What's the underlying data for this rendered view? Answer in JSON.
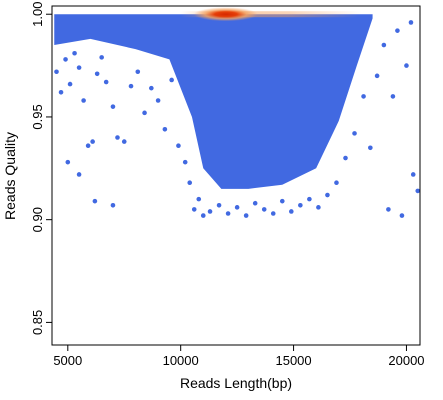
{
  "chart_data": {
    "type": "scatter",
    "title": "",
    "xlabel": "Reads Length(bp)",
    "ylabel": "Reads Quality",
    "xlim": [
      4300,
      20600
    ],
    "ylim": [
      0.839,
      1.004
    ],
    "x_ticks": [
      5000,
      10000,
      15000,
      20000
    ],
    "y_ticks": [
      0.85,
      0.9,
      0.95,
      1.0
    ],
    "x_tick_labels": [
      "5000",
      "10000",
      "15000",
      "20000"
    ],
    "y_tick_labels": [
      "0.85",
      "0.90",
      "0.95",
      "1.00"
    ],
    "grid": false,
    "legend": "none",
    "point_color": "#4169E1",
    "density_colors": [
      "#4169E1",
      "#F4A261",
      "#E63900",
      "#D62800"
    ],
    "density_peak": {
      "x": 12000,
      "y": 1.0
    },
    "dense_region_boundary": {
      "upper_y": 1.0,
      "points": [
        [
          4400,
          0.985
        ],
        [
          6000,
          0.988
        ],
        [
          8000,
          0.983
        ],
        [
          9500,
          0.978
        ],
        [
          10500,
          0.95
        ],
        [
          11000,
          0.925
        ],
        [
          11800,
          0.915
        ],
        [
          13000,
          0.915
        ],
        [
          14500,
          0.917
        ],
        [
          16000,
          0.925
        ],
        [
          17000,
          0.948
        ],
        [
          17800,
          0.975
        ],
        [
          18500,
          0.998
        ]
      ]
    },
    "points": [
      {
        "x": 4500,
        "y": 0.972
      },
      {
        "x": 4700,
        "y": 0.962
      },
      {
        "x": 4900,
        "y": 0.978
      },
      {
        "x": 5100,
        "y": 0.966
      },
      {
        "x": 5300,
        "y": 0.981
      },
      {
        "x": 5500,
        "y": 0.974
      },
      {
        "x": 5700,
        "y": 0.958
      },
      {
        "x": 5900,
        "y": 0.936
      },
      {
        "x": 6100,
        "y": 0.938
      },
      {
        "x": 6300,
        "y": 0.971
      },
      {
        "x": 6500,
        "y": 0.979
      },
      {
        "x": 6700,
        "y": 0.967
      },
      {
        "x": 7000,
        "y": 0.955
      },
      {
        "x": 7200,
        "y": 0.94
      },
      {
        "x": 7500,
        "y": 0.938
      },
      {
        "x": 7800,
        "y": 0.965
      },
      {
        "x": 8100,
        "y": 0.972
      },
      {
        "x": 8400,
        "y": 0.952
      },
      {
        "x": 8700,
        "y": 0.964
      },
      {
        "x": 9000,
        "y": 0.958
      },
      {
        "x": 9300,
        "y": 0.944
      },
      {
        "x": 9600,
        "y": 0.968
      },
      {
        "x": 9900,
        "y": 0.936
      },
      {
        "x": 10200,
        "y": 0.928
      },
      {
        "x": 10400,
        "y": 0.918
      },
      {
        "x": 10600,
        "y": 0.905
      },
      {
        "x": 10800,
        "y": 0.91
      },
      {
        "x": 11000,
        "y": 0.902
      },
      {
        "x": 11300,
        "y": 0.904
      },
      {
        "x": 11700,
        "y": 0.907
      },
      {
        "x": 12100,
        "y": 0.903
      },
      {
        "x": 12500,
        "y": 0.906
      },
      {
        "x": 12900,
        "y": 0.902
      },
      {
        "x": 13300,
        "y": 0.908
      },
      {
        "x": 13700,
        "y": 0.905
      },
      {
        "x": 14100,
        "y": 0.903
      },
      {
        "x": 14500,
        "y": 0.909
      },
      {
        "x": 14900,
        "y": 0.904
      },
      {
        "x": 15300,
        "y": 0.907
      },
      {
        "x": 15700,
        "y": 0.91
      },
      {
        "x": 16100,
        "y": 0.906
      },
      {
        "x": 16500,
        "y": 0.912
      },
      {
        "x": 16900,
        "y": 0.918
      },
      {
        "x": 17300,
        "y": 0.93
      },
      {
        "x": 17700,
        "y": 0.942
      },
      {
        "x": 18100,
        "y": 0.96
      },
      {
        "x": 18400,
        "y": 0.935
      },
      {
        "x": 18700,
        "y": 0.97
      },
      {
        "x": 19000,
        "y": 0.985
      },
      {
        "x": 19200,
        "y": 0.905
      },
      {
        "x": 19400,
        "y": 0.96
      },
      {
        "x": 19600,
        "y": 0.992
      },
      {
        "x": 19800,
        "y": 0.902
      },
      {
        "x": 20000,
        "y": 0.975
      },
      {
        "x": 20200,
        "y": 0.996
      },
      {
        "x": 20300,
        "y": 0.922
      },
      {
        "x": 20500,
        "y": 0.914
      },
      {
        "x": 6200,
        "y": 0.909
      },
      {
        "x": 5500,
        "y": 0.922
      },
      {
        "x": 7000,
        "y": 0.907
      },
      {
        "x": 5000,
        "y": 0.928
      }
    ]
  }
}
